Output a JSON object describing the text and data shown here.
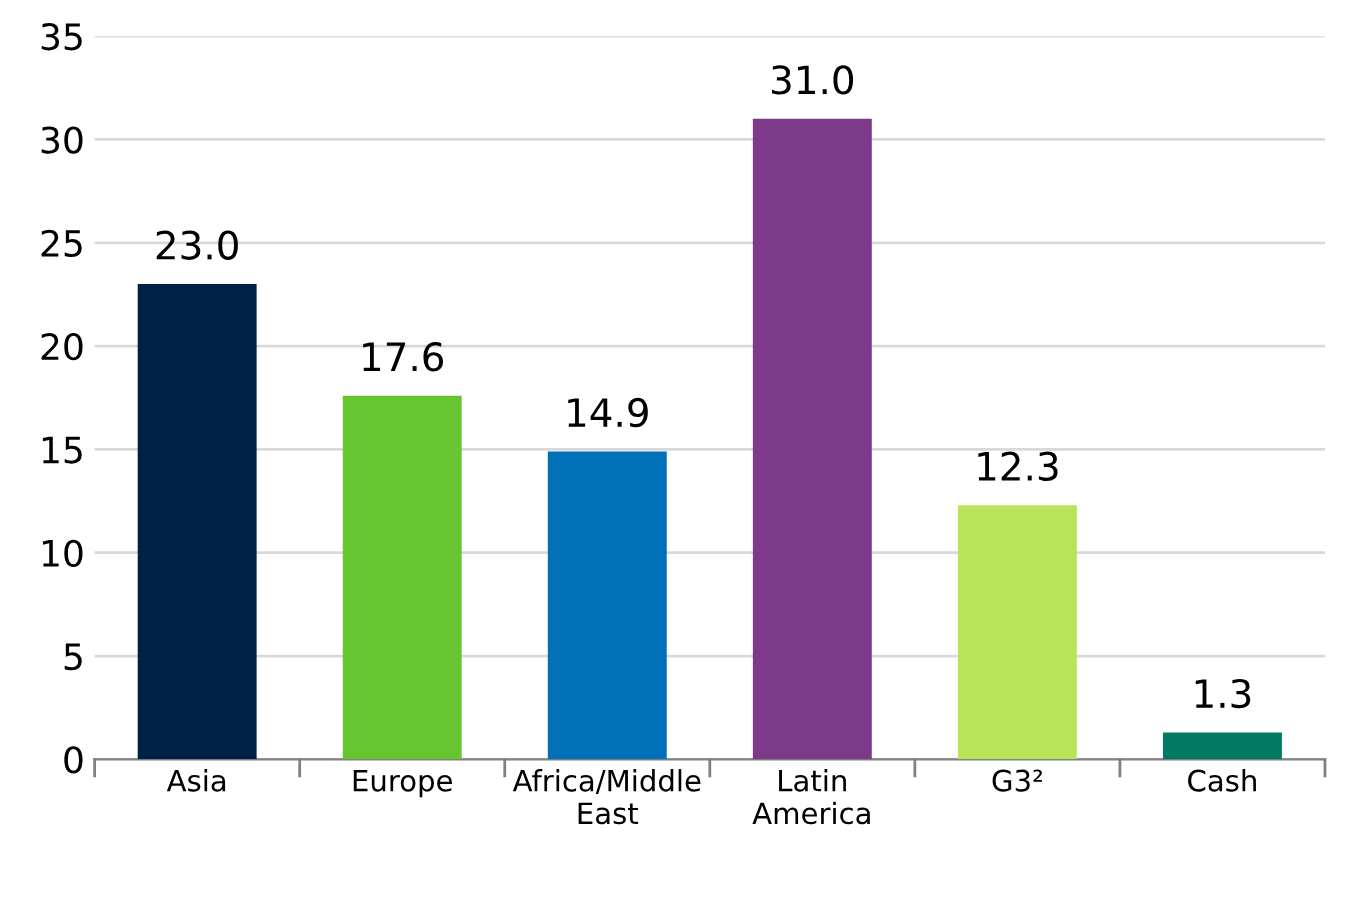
{
  "chart_data": {
    "type": "bar",
    "categories": [
      "Asia",
      "Europe",
      "Africa/Middle East",
      "Latin America",
      "G3²",
      "Cash"
    ],
    "values": [
      23.0,
      17.6,
      14.9,
      31.0,
      12.3,
      1.3
    ],
    "colors": [
      "#002147",
      "#66c531",
      "#0070b8",
      "#7d3a8a",
      "#b8e45a",
      "#007a63"
    ],
    "value_labels": [
      "23.0",
      "17.6",
      "14.9",
      "31.0",
      "12.3",
      "1.3"
    ],
    "ylim": [
      0,
      35
    ],
    "yticks": [
      0,
      5,
      10,
      15,
      20,
      25,
      30,
      35
    ],
    "grid": "y"
  }
}
